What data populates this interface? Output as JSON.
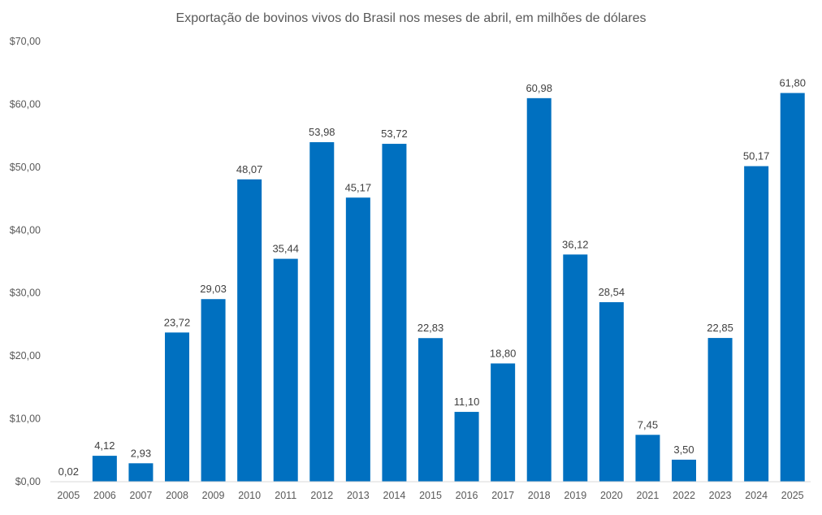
{
  "chart_data": {
    "type": "bar",
    "title": "Exportação de bovinos vivos do Brasil nos meses de abril, em milhões de dólares",
    "xlabel": "",
    "ylabel": "",
    "ylim": [
      0,
      70
    ],
    "grid": false,
    "legend": "none",
    "bar_color": "#0070C0",
    "categories": [
      "2005",
      "2006",
      "2007",
      "2008",
      "2009",
      "2010",
      "2011",
      "2012",
      "2013",
      "2014",
      "2015",
      "2016",
      "2017",
      "2018",
      "2019",
      "2020",
      "2021",
      "2022",
      "2023",
      "2024",
      "2025"
    ],
    "values": [
      0.02,
      4.12,
      2.93,
      23.72,
      29.03,
      48.07,
      35.44,
      53.98,
      45.17,
      53.72,
      22.83,
      11.1,
      18.8,
      60.98,
      36.12,
      28.54,
      7.45,
      3.5,
      22.85,
      50.17,
      61.8
    ],
    "data_labels": [
      "0,02",
      "4,12",
      "2,93",
      "23,72",
      "29,03",
      "48,07",
      "35,44",
      "53,98",
      "45,17",
      "53,72",
      "22,83",
      "11,10",
      "18,80",
      "60,98",
      "36,12",
      "28,54",
      "7,45",
      "3,50",
      "22,85",
      "50,17",
      "61,80"
    ],
    "yticks": [
      0,
      10,
      20,
      30,
      40,
      50,
      60,
      70
    ],
    "ytick_labels": [
      "$0,00",
      "$10,00",
      "$20,00",
      "$30,00",
      "$40,00",
      "$50,00",
      "$60,00",
      "$70,00"
    ]
  }
}
